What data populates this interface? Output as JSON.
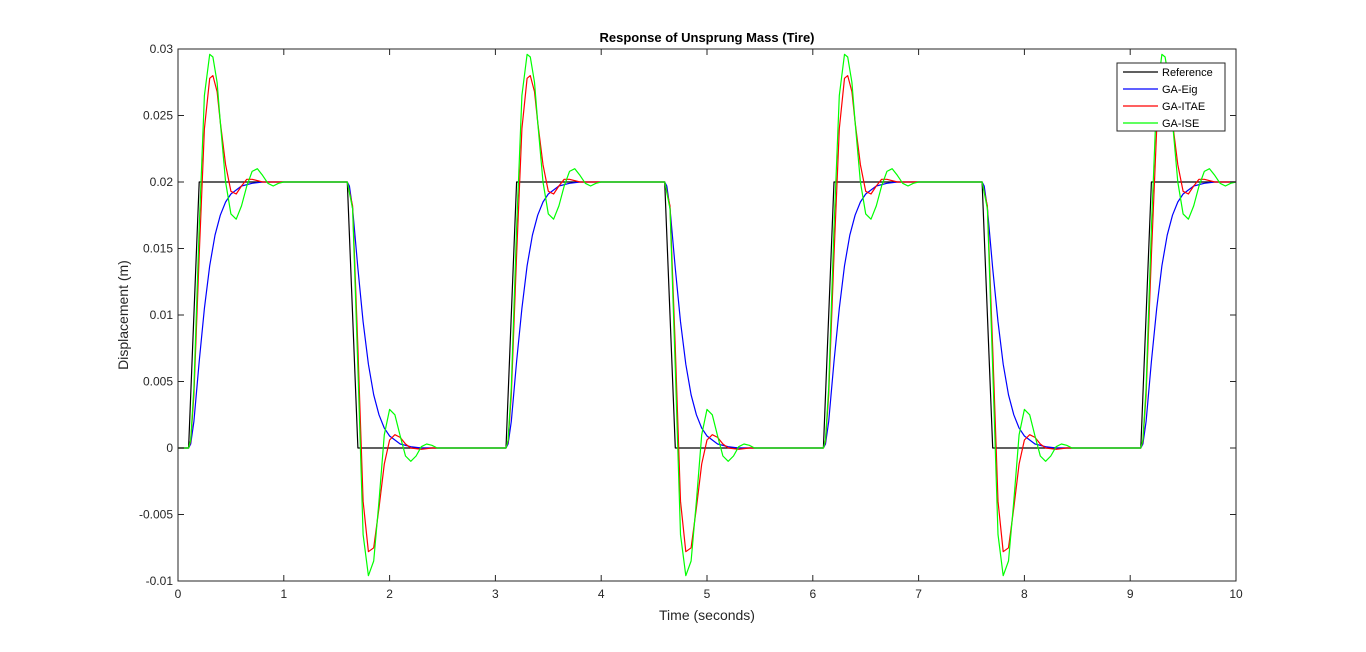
{
  "chart_data": {
    "type": "line",
    "title": "Response of Unsprung Mass (Tire)",
    "xlabel": "Time (seconds)",
    "ylabel": "Displacement (m)",
    "xlim": [
      0,
      10
    ],
    "ylim": [
      -0.01,
      0.03
    ],
    "xticks": [
      0,
      1,
      2,
      3,
      4,
      5,
      6,
      7,
      8,
      9,
      10
    ],
    "xtick_labels": [
      "0",
      "1",
      "2",
      "3",
      "4",
      "5",
      "6",
      "7",
      "8",
      "9",
      "10"
    ],
    "yticks": [
      -0.01,
      -0.005,
      0,
      0.005,
      0.01,
      0.015,
      0.02,
      0.025,
      0.03
    ],
    "ytick_labels": [
      "-0.01",
      "-0.005",
      "0",
      "0.005",
      "0.01",
      "0.015",
      "0.02",
      "0.025",
      "0.03"
    ],
    "grid": false,
    "legend_position": "top-right",
    "series": [
      {
        "name": "Reference",
        "color": "#000000",
        "x": [
          0,
          0.1,
          0.2,
          1.6,
          1.7,
          3.1,
          3.2,
          4.6,
          4.7,
          6.1,
          6.2,
          7.6,
          7.7,
          9.1,
          9.2,
          10
        ],
        "y": [
          0,
          0,
          0.02,
          0.02,
          0,
          0,
          0.02,
          0.02,
          0,
          0,
          0.02,
          0.02,
          0,
          0,
          0.02,
          0.02
        ]
      },
      {
        "name": "GA-Eig",
        "color": "#0000ff",
        "x": [
          0,
          0.1,
          0.12,
          0.15,
          0.2,
          0.25,
          0.3,
          0.35,
          0.4,
          0.45,
          0.5,
          0.6,
          0.7,
          0.8,
          1.6,
          1.62,
          1.65,
          1.7,
          1.75,
          1.8,
          1.85,
          1.9,
          1.95,
          2.0,
          2.1,
          2.2,
          2.3,
          3.1,
          3.12,
          3.15,
          3.2,
          3.25,
          3.3,
          3.35,
          3.4,
          3.45,
          3.5,
          3.6,
          3.7,
          3.8,
          4.6,
          4.62,
          4.65,
          4.7,
          4.75,
          4.8,
          4.85,
          4.9,
          4.95,
          5.0,
          5.1,
          5.2,
          5.3,
          6.1,
          6.12,
          6.15,
          6.2,
          6.25,
          6.3,
          6.35,
          6.4,
          6.45,
          6.5,
          6.6,
          6.7,
          6.8,
          7.6,
          7.62,
          7.65,
          7.7,
          7.75,
          7.8,
          7.85,
          7.9,
          7.95,
          8.0,
          8.1,
          8.2,
          8.3,
          9.1,
          9.12,
          9.15,
          9.2,
          9.25,
          9.3,
          9.35,
          9.4,
          9.45,
          9.5,
          9.6,
          9.7,
          9.8,
          10
        ],
        "y": [
          0,
          0,
          0.0003,
          0.002,
          0.0065,
          0.0105,
          0.0137,
          0.016,
          0.0175,
          0.0185,
          0.0191,
          0.0197,
          0.0199,
          0.02,
          0.02,
          0.0197,
          0.018,
          0.0135,
          0.0095,
          0.0063,
          0.004,
          0.0025,
          0.0015,
          0.0009,
          0.0003,
          0.0001,
          0,
          0,
          0.0003,
          0.002,
          0.0065,
          0.0105,
          0.0137,
          0.016,
          0.0175,
          0.0185,
          0.0191,
          0.0197,
          0.0199,
          0.02,
          0.02,
          0.0197,
          0.018,
          0.0135,
          0.0095,
          0.0063,
          0.004,
          0.0025,
          0.0015,
          0.0009,
          0.0003,
          0.0001,
          0,
          0,
          0.0003,
          0.002,
          0.0065,
          0.0105,
          0.0137,
          0.016,
          0.0175,
          0.0185,
          0.0191,
          0.0197,
          0.0199,
          0.02,
          0.02,
          0.0197,
          0.018,
          0.0135,
          0.0095,
          0.0063,
          0.004,
          0.0025,
          0.0015,
          0.0009,
          0.0003,
          0.0001,
          0,
          0,
          0.0003,
          0.002,
          0.0065,
          0.0105,
          0.0137,
          0.016,
          0.0175,
          0.0185,
          0.0191,
          0.0197,
          0.0199,
          0.02,
          0.02
        ]
      },
      {
        "name": "GA-ITAE",
        "color": "#ff0000",
        "x": [
          0,
          0.1,
          0.12,
          0.15,
          0.2,
          0.25,
          0.3,
          0.33,
          0.37,
          0.4,
          0.45,
          0.5,
          0.55,
          0.6,
          0.65,
          0.7,
          0.8,
          0.9,
          1.6,
          1.65,
          1.7,
          1.75,
          1.8,
          1.85,
          1.9,
          1.95,
          2.0,
          2.05,
          2.1,
          2.15,
          2.2,
          2.3,
          2.4,
          3.1,
          3.12,
          3.15,
          3.2,
          3.25,
          3.3,
          3.33,
          3.37,
          3.4,
          3.45,
          3.5,
          3.55,
          3.6,
          3.65,
          3.7,
          3.8,
          3.9,
          4.6,
          4.65,
          4.7,
          4.75,
          4.8,
          4.85,
          4.9,
          4.95,
          5.0,
          5.05,
          5.1,
          5.15,
          5.2,
          5.3,
          5.4,
          6.1,
          6.12,
          6.15,
          6.2,
          6.25,
          6.3,
          6.33,
          6.37,
          6.4,
          6.45,
          6.5,
          6.55,
          6.6,
          6.65,
          6.7,
          6.8,
          6.9,
          7.6,
          7.65,
          7.7,
          7.75,
          7.8,
          7.85,
          7.9,
          7.95,
          8.0,
          8.05,
          8.1,
          8.15,
          8.2,
          8.3,
          8.4,
          9.1,
          9.12,
          9.15,
          9.2,
          9.25,
          9.3,
          9.33,
          9.37,
          9.4,
          9.45,
          9.5,
          9.55,
          9.6,
          9.65,
          9.7,
          9.8,
          10
        ],
        "y": [
          0,
          0,
          0.0005,
          0.004,
          0.0145,
          0.024,
          0.0278,
          0.028,
          0.0268,
          0.0245,
          0.0213,
          0.0193,
          0.0191,
          0.0197,
          0.0202,
          0.0202,
          0.02,
          0.02,
          0.02,
          0.0182,
          0.0075,
          -0.004,
          -0.0078,
          -0.0075,
          -0.0045,
          -0.0012,
          0.0006,
          0.001,
          0.0008,
          0.0003,
          0,
          -0.0001,
          0,
          0,
          0.0005,
          0.004,
          0.0145,
          0.024,
          0.0278,
          0.028,
          0.0268,
          0.0245,
          0.0213,
          0.0193,
          0.0191,
          0.0197,
          0.0202,
          0.0202,
          0.02,
          0.02,
          0.02,
          0.0182,
          0.0075,
          -0.004,
          -0.0078,
          -0.0075,
          -0.0045,
          -0.0012,
          0.0006,
          0.001,
          0.0008,
          0.0003,
          0,
          -0.0001,
          0,
          0,
          0.0005,
          0.004,
          0.0145,
          0.024,
          0.0278,
          0.028,
          0.0268,
          0.0245,
          0.0213,
          0.0193,
          0.0191,
          0.0197,
          0.0202,
          0.0202,
          0.02,
          0.02,
          0.02,
          0.0182,
          0.0075,
          -0.004,
          -0.0078,
          -0.0075,
          -0.0045,
          -0.0012,
          0.0006,
          0.001,
          0.0008,
          0.0003,
          0,
          -0.0001,
          0,
          0,
          0.0005,
          0.004,
          0.0145,
          0.024,
          0.0278,
          0.028,
          0.0268,
          0.0245,
          0.0213,
          0.0193,
          0.0191,
          0.0197,
          0.0202,
          0.0202,
          0.02,
          0.02
        ]
      },
      {
        "name": "GA-ISE",
        "color": "#00ff00",
        "x": [
          0,
          0.1,
          0.12,
          0.15,
          0.2,
          0.25,
          0.3,
          0.33,
          0.37,
          0.4,
          0.45,
          0.5,
          0.55,
          0.6,
          0.65,
          0.7,
          0.75,
          0.8,
          0.85,
          0.9,
          0.95,
          1.0,
          1.6,
          1.65,
          1.7,
          1.75,
          1.8,
          1.85,
          1.9,
          1.95,
          2.0,
          2.05,
          2.1,
          2.15,
          2.2,
          2.25,
          2.3,
          2.35,
          2.4,
          2.45,
          2.5,
          3.1,
          3.12,
          3.15,
          3.2,
          3.25,
          3.3,
          3.33,
          3.37,
          3.4,
          3.45,
          3.5,
          3.55,
          3.6,
          3.65,
          3.7,
          3.75,
          3.8,
          3.85,
          3.9,
          3.95,
          4.0,
          4.6,
          4.65,
          4.7,
          4.75,
          4.8,
          4.85,
          4.9,
          4.95,
          5.0,
          5.05,
          5.1,
          5.15,
          5.2,
          5.25,
          5.3,
          5.35,
          5.4,
          5.45,
          5.5,
          6.1,
          6.12,
          6.15,
          6.2,
          6.25,
          6.3,
          6.33,
          6.37,
          6.4,
          6.45,
          6.5,
          6.55,
          6.6,
          6.65,
          6.7,
          6.75,
          6.8,
          6.85,
          6.9,
          6.95,
          7.0,
          7.6,
          7.65,
          7.7,
          7.75,
          7.8,
          7.85,
          7.9,
          7.95,
          8.0,
          8.05,
          8.1,
          8.15,
          8.2,
          8.25,
          8.3,
          8.35,
          8.4,
          8.45,
          8.5,
          9.1,
          9.12,
          9.15,
          9.2,
          9.25,
          9.3,
          9.33,
          9.37,
          9.4,
          9.45,
          9.5,
          9.55,
          9.6,
          9.65,
          9.7,
          9.75,
          9.8,
          9.85,
          9.9,
          9.95,
          10.0
        ],
        "y": [
          0,
          0,
          0.0006,
          0.0045,
          0.0165,
          0.0265,
          0.0296,
          0.0294,
          0.0275,
          0.0245,
          0.02,
          0.0176,
          0.0172,
          0.0182,
          0.0197,
          0.0208,
          0.021,
          0.0205,
          0.0199,
          0.0197,
          0.0199,
          0.02,
          0.02,
          0.018,
          0.006,
          -0.0065,
          -0.0096,
          -0.0085,
          -0.004,
          0.001,
          0.0029,
          0.0025,
          0.0009,
          -0.0006,
          -0.001,
          -0.0006,
          0.0001,
          0.0003,
          0.0002,
          0,
          0,
          0,
          0.0006,
          0.0045,
          0.0165,
          0.0265,
          0.0296,
          0.0294,
          0.0275,
          0.0245,
          0.02,
          0.0176,
          0.0172,
          0.0182,
          0.0197,
          0.0208,
          0.021,
          0.0205,
          0.0199,
          0.0197,
          0.0199,
          0.02,
          0.02,
          0.018,
          0.006,
          -0.0065,
          -0.0096,
          -0.0085,
          -0.004,
          0.001,
          0.0029,
          0.0025,
          0.0009,
          -0.0006,
          -0.001,
          -0.0006,
          0.0001,
          0.0003,
          0.0002,
          0,
          0,
          0,
          0.0006,
          0.0045,
          0.0165,
          0.0265,
          0.0296,
          0.0294,
          0.0275,
          0.0245,
          0.02,
          0.0176,
          0.0172,
          0.0182,
          0.0197,
          0.0208,
          0.021,
          0.0205,
          0.0199,
          0.0197,
          0.0199,
          0.02,
          0.02,
          0.018,
          0.006,
          -0.0065,
          -0.0096,
          -0.0085,
          -0.004,
          0.001,
          0.0029,
          0.0025,
          0.0009,
          -0.0006,
          -0.001,
          -0.0006,
          0.0001,
          0.0003,
          0.0002,
          0,
          0,
          0,
          0.0006,
          0.0045,
          0.0165,
          0.0265,
          0.0296,
          0.0294,
          0.0275,
          0.0245,
          0.02,
          0.0176,
          0.0172,
          0.0182,
          0.0197,
          0.0208,
          0.021,
          0.0205,
          0.0199,
          0.0197,
          0.0199,
          0.02
        ]
      }
    ]
  }
}
